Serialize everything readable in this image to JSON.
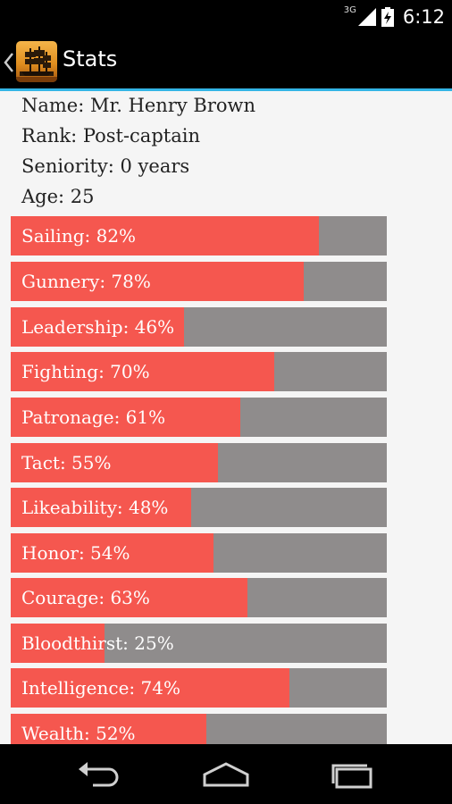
{
  "status_bar": {
    "network": "3G",
    "time": "6:12",
    "icons": [
      "signal-icon",
      "battery-icon"
    ]
  },
  "action_bar": {
    "title": "Stats",
    "logo": "ship-logo-icon",
    "up": "up-caret-icon"
  },
  "profile": {
    "name": "Name: Mr. Henry Brown",
    "rank": "Rank: Post-captain",
    "seniority": "Seniority: 0 years",
    "age": "Age: 25"
  },
  "stats": [
    {
      "label": "Sailing: 82%",
      "value": 82
    },
    {
      "label": "Gunnery: 78%",
      "value": 78
    },
    {
      "label": "Leadership: 46%",
      "value": 46
    },
    {
      "label": "Fighting: 70%",
      "value": 70
    },
    {
      "label": "Patronage: 61%",
      "value": 61
    },
    {
      "label": "Tact: 55%",
      "value": 55
    },
    {
      "label": "Likeability: 48%",
      "value": 48
    },
    {
      "label": "Honor: 54%",
      "value": 54
    },
    {
      "label": "Courage: 63%",
      "value": 63
    },
    {
      "label": "Bloodthirst: 25%",
      "value": 25
    },
    {
      "label": "Intelligence: 74%",
      "value": 74
    },
    {
      "label": "Wealth: 52%",
      "value": 52
    }
  ],
  "colors": {
    "bar_fill": "#f5574f",
    "bar_track": "#8f8c8c",
    "accent": "#33b5e5"
  },
  "nav_bar": {
    "buttons": [
      "back-icon",
      "home-icon",
      "recent-apps-icon"
    ]
  }
}
